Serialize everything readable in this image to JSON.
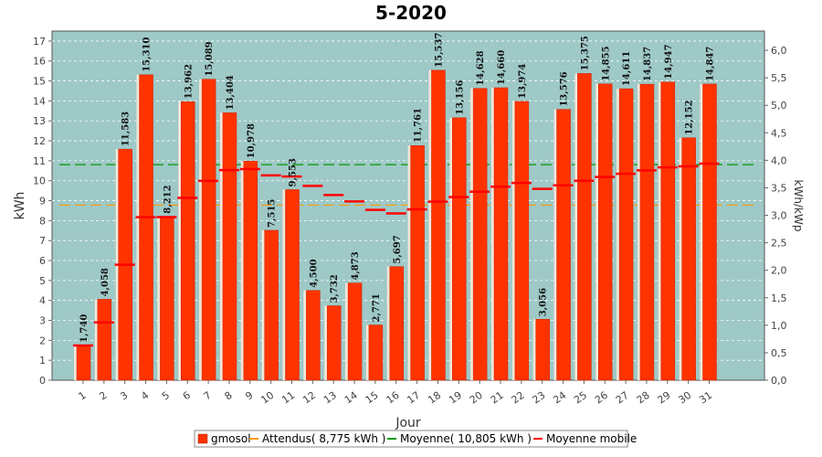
{
  "chart_data": {
    "type": "bar",
    "title": "5-2020",
    "xlabel": "Jour",
    "ylabel": "kWh",
    "ylabel_right": "kWh/kWp",
    "ylim": [
      0,
      17.5
    ],
    "ylim_right": [
      0,
      6.35
    ],
    "yticks": [
      0,
      1,
      2,
      3,
      4,
      5,
      6,
      7,
      8,
      9,
      10,
      11,
      12,
      13,
      14,
      15,
      16,
      17
    ],
    "yticks_right": [
      "0,0",
      "0,5",
      "1,0",
      "1,5",
      "2,0",
      "2,5",
      "3,0",
      "3,5",
      "4,0",
      "4,5",
      "5,0",
      "5,5",
      "6,0"
    ],
    "categories": [
      "1",
      "2",
      "3",
      "4",
      "5",
      "6",
      "7",
      "8",
      "9",
      "10",
      "11",
      "12",
      "13",
      "14",
      "15",
      "16",
      "17",
      "18",
      "19",
      "20",
      "21",
      "22",
      "23",
      "24",
      "25",
      "26",
      "27",
      "28",
      "29",
      "30",
      "31"
    ],
    "series": [
      {
        "name": "gmosol",
        "color": "#ff3300",
        "values": [
          1.74,
          4.058,
          11.583,
          15.31,
          8.212,
          13.962,
          15.089,
          13.404,
          10.978,
          7.515,
          9.553,
          4.5,
          3.732,
          4.873,
          2.771,
          5.697,
          11.761,
          15.537,
          13.156,
          14.628,
          14.66,
          13.974,
          3.056,
          13.576,
          15.375,
          14.855,
          14.611,
          14.837,
          14.947,
          12.152,
          14.847
        ],
        "labels": [
          "1,740",
          "4,058",
          "11,583",
          "15,310",
          "8,212",
          "13,962",
          "15,089",
          "13,404",
          "10,978",
          "7,515",
          "9,553",
          "4,500",
          "3,732",
          "4,873",
          "2,771",
          "5,697",
          "11,761",
          "15,537",
          "13,156",
          "14,628",
          "14,660",
          "13,974",
          "3,056",
          "13,576",
          "15,375",
          "14,855",
          "14,611",
          "14,837",
          "14,947",
          "12,152",
          "14,847"
        ]
      },
      {
        "name": "Moyenne mobile",
        "color": "#ff0000",
        "values": [
          1.74,
          2.9,
          5.79,
          8.17,
          8.18,
          9.14,
          9.99,
          10.53,
          10.58,
          10.27,
          10.21,
          9.74,
          9.28,
          8.96,
          8.54,
          8.36,
          8.56,
          8.95,
          9.18,
          9.45,
          9.7,
          9.89,
          9.59,
          9.77,
          10.0,
          10.19,
          10.35,
          10.52,
          10.67,
          10.72,
          10.86
        ]
      }
    ],
    "reference_lines": [
      {
        "name": "Attendus( 8,775 kWh )",
        "value": 8.775,
        "color": "#ff9900"
      },
      {
        "name": "Moyenne( 10,805 kWh )",
        "value": 10.805,
        "color": "#009900"
      }
    ],
    "legend": [
      {
        "name": "gmosol",
        "color": "#ff3300",
        "kind": "box"
      },
      {
        "name": "Attendus( 8,775 kWh )",
        "color": "#ff9900",
        "kind": "line"
      },
      {
        "name": "Moyenne( 10,805 kWh )",
        "color": "#009900",
        "kind": "line"
      },
      {
        "name": "Moyenne mobile",
        "color": "#ff0000",
        "kind": "line"
      }
    ],
    "legend_position": "bottom",
    "plot_background": "#9ec9c7",
    "grid": true
  }
}
